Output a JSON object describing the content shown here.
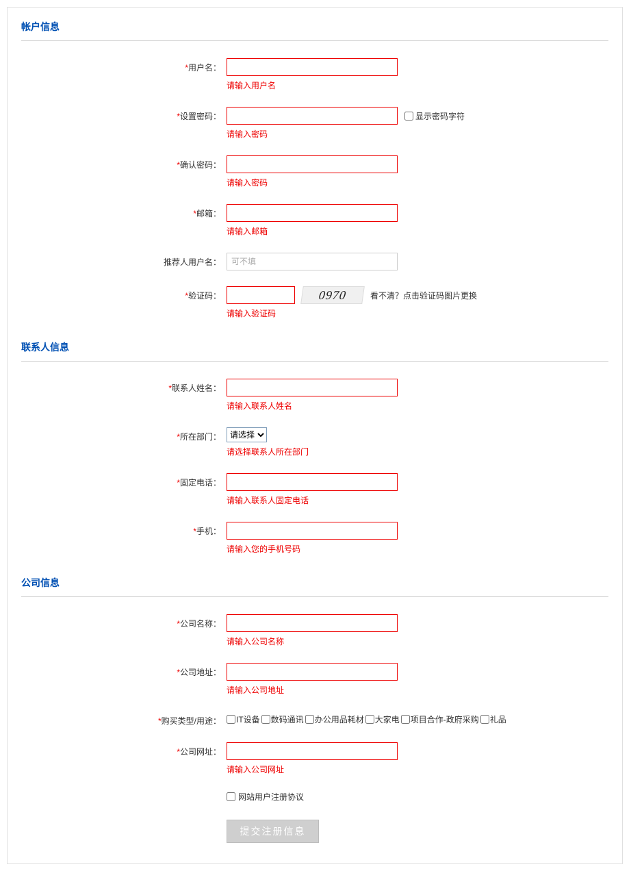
{
  "colors": {
    "section_title": "#0050b3",
    "error": "#e00",
    "required_star": "#e00",
    "input_border_error": "#e00",
    "input_border_neutral": "#cccccc",
    "divider": "#d0d0d0",
    "submit_bg": "#cfcfcf",
    "submit_text": "#ffffff",
    "text": "#333333"
  },
  "sections": {
    "account": {
      "title": "帐户信息"
    },
    "contact": {
      "title": "联系人信息"
    },
    "company": {
      "title": "公司信息"
    }
  },
  "fields": {
    "username": {
      "label": "用户名：",
      "error": "请输入用户名"
    },
    "password": {
      "label": "设置密码：",
      "error": "请输入密码"
    },
    "show_password": {
      "label": "显示密码字符"
    },
    "confirm_password": {
      "label": "确认密码：",
      "error": "请输入密码"
    },
    "email": {
      "label": "邮箱：",
      "error": "请输入邮箱"
    },
    "referrer": {
      "label": "推荐人用户名：",
      "placeholder": "可不填"
    },
    "captcha": {
      "label": "验证码：",
      "error": "请输入验证码",
      "image_text": "0970",
      "hint": "看不清？点击验证码图片更换"
    },
    "contact_name": {
      "label": "联系人姓名：",
      "error": "请输入联系人姓名"
    },
    "department": {
      "label": "所在部门：",
      "error": "请选择联系人所在部门",
      "selected": "请选择"
    },
    "landline": {
      "label": "固定电话：",
      "error": "请输入联系人固定电话"
    },
    "mobile": {
      "label": "手机：",
      "error": "请输入您的手机号码"
    },
    "company_name": {
      "label": "公司名称：",
      "error": "请输入公司名称"
    },
    "company_address": {
      "label": "公司地址：",
      "error": "请输入公司地址"
    },
    "purchase_type": {
      "label": "购买类型/用途：",
      "options": [
        "IT设备",
        "数码通讯",
        "办公用品耗材",
        "大家电",
        "项目合作-政府采购",
        "礼品"
      ]
    },
    "company_website": {
      "label": "公司网址：",
      "error": "请输入公司网址"
    },
    "agreement": {
      "label": "网站用户注册协议"
    }
  },
  "submit": {
    "label": "提交注册信息"
  }
}
